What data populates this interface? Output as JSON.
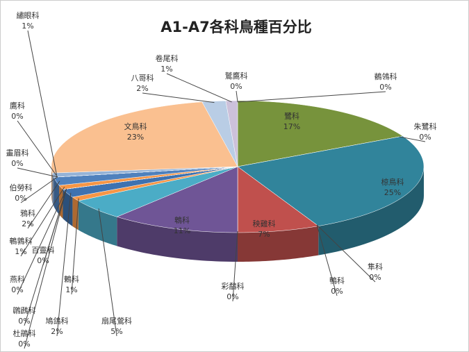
{
  "chart_data": {
    "type": "pie",
    "title": "A1-A7各科鳥種百分比",
    "categories": [
      "鷲鷹科",
      "鶺鴒科",
      "鷺科",
      "朱鷺科",
      "椋鳥科",
      "隼科",
      "鴨科",
      "秧雞科",
      "彩鷸科",
      "鵯科",
      "扇尾鶯科",
      "鶇科",
      "鳩鴿科",
      "杜鵑科",
      "鸊鷉科",
      "燕科",
      "百靈科",
      "鵪鶉科",
      "鴉科",
      "伯勞科",
      "畫眉科",
      "鷹科",
      "繡眼科",
      "文鳥科",
      "八哥科",
      "卷尾科"
    ],
    "values": [
      0,
      0,
      17,
      0,
      25,
      0,
      0,
      7,
      0,
      11,
      5,
      1,
      2,
      0,
      0,
      0,
      0,
      1,
      2,
      0,
      0,
      0,
      1,
      23,
      2,
      1
    ],
    "value_labels": [
      "0%",
      "0%",
      "17%",
      "0%",
      "25%",
      "0%",
      "0%",
      "7%",
      "0%",
      "11%",
      "5%",
      "1%",
      "2%",
      "0%",
      "0%",
      "0%",
      "0%",
      "1%",
      "2%",
      "0%",
      "0%",
      "0%",
      "1%",
      "23%",
      "2%",
      "1%"
    ],
    "colors": [
      "#c0504d",
      "#9bbb59",
      "#77933c",
      "#8064a2",
      "#31849b",
      "#f79646",
      "#4f81bd",
      "#c0504d",
      "#9bbb59",
      "#6f5596",
      "#4bacc6",
      "#f79646",
      "#3e72b0",
      "#c0504d",
      "#9bbb59",
      "#8064a2",
      "#4bacc6",
      "#f79646",
      "#4f81bd",
      "#c0504d",
      "#9bbb59",
      "#8064a2",
      "#95b3d7",
      "#fac090",
      "#b9cde5",
      "#ccc1da"
    ]
  }
}
